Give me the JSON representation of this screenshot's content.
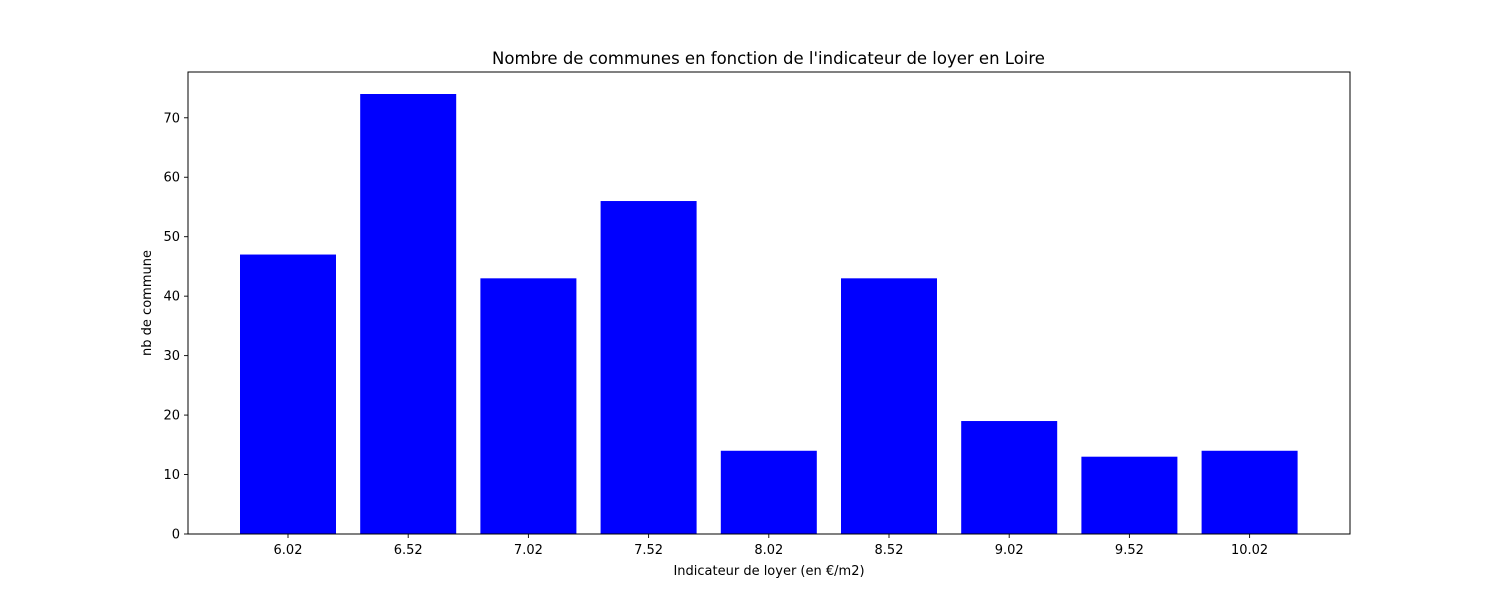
{
  "chart_data": {
    "type": "bar",
    "title": "Nombre de communes en fonction de l'indicateur de loyer en Loire",
    "xlabel": "Indicateur de loyer (en €/m2)",
    "ylabel": "nb de commune",
    "categories": [
      "6.02",
      "6.52",
      "7.02",
      "7.52",
      "8.02",
      "8.52",
      "9.02",
      "9.52",
      "10.02"
    ],
    "values": [
      47,
      74,
      43,
      56,
      14,
      43,
      19,
      13,
      14
    ],
    "ylim": [
      0,
      77.7
    ],
    "yticks": [
      0,
      10,
      20,
      30,
      40,
      50,
      60,
      70
    ],
    "bar_color": "#0000ff",
    "grid": false,
    "legend": "none"
  }
}
